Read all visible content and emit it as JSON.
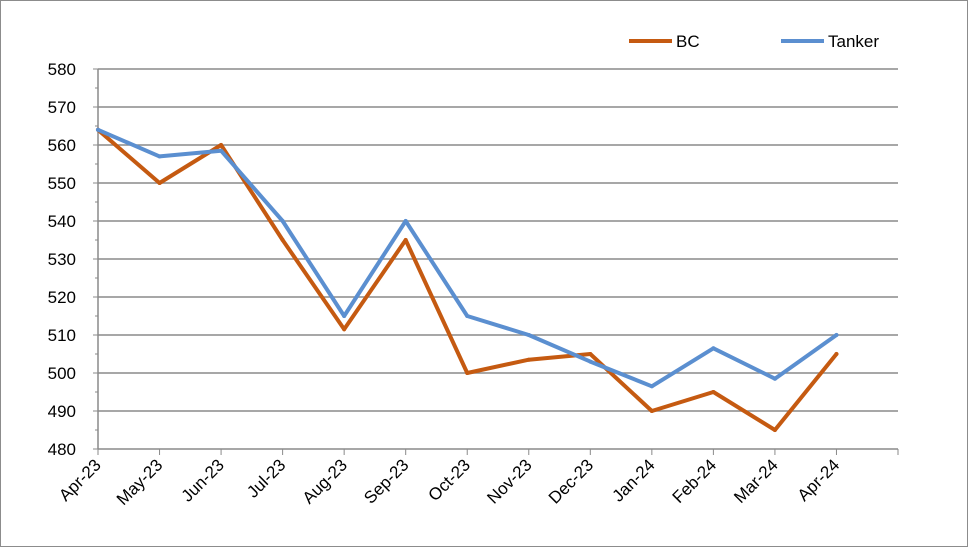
{
  "chart_data": {
    "type": "line",
    "title": "",
    "xlabel": "",
    "ylabel": "",
    "categories": [
      "Apr-23",
      "May-23",
      "Jun-23",
      "Jul-23",
      "Aug-23",
      "Sep-23",
      "Oct-23",
      "Nov-23",
      "Dec-23",
      "Jan-24",
      "Feb-24",
      "Mar-24",
      "Apr-24"
    ],
    "ylim": [
      480,
      580
    ],
    "yticks": [
      480,
      490,
      500,
      510,
      520,
      530,
      540,
      550,
      560,
      570,
      580
    ],
    "grid": true,
    "legend_position": "top-right",
    "series": [
      {
        "name": "BC",
        "color": "#c55a11",
        "values": [
          564,
          550,
          560,
          535,
          511.5,
          535,
          500,
          503.5,
          505,
          490,
          495,
          485,
          505
        ]
      },
      {
        "name": "Tanker",
        "color": "#5b8fd0",
        "values": [
          564,
          557,
          558.5,
          540,
          515,
          540,
          515,
          510,
          503,
          496.5,
          506.5,
          498.5,
          510
        ]
      }
    ]
  }
}
